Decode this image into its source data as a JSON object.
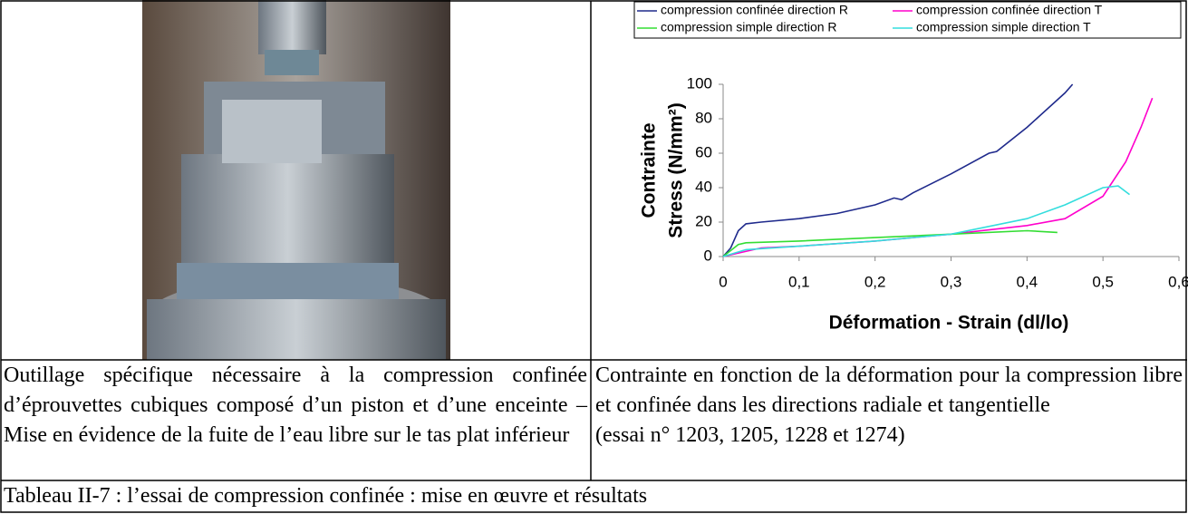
{
  "table": {
    "rows": [
      [
        "Outillage spécifique nécessaire à la compression confinée d’éprouvettes cubiques composé d’un piston et d’une enceinte – Mise en évidence de la fuite de l’eau libre sur le tas plat inférieur",
        [
          "Contrainte en fonction de la déformation pour la compression libre et confinée dans les directions radiale et tangentielle",
          "(essai n° 1203, 1205, 1228 et 1274)"
        ]
      ],
      [
        "Tableau II-7 : l’essai de compression confinée : mise en œuvre et résultats"
      ]
    ]
  },
  "chart_data": {
    "type": "line",
    "x_label": "Déformation - Strain (dl/lo)",
    "y_label": [
      "Contrainte",
      "Stress (N/mm²)"
    ],
    "xlim": [
      0,
      0.6
    ],
    "xticks": [
      0,
      {
        "value": 0.1,
        "label": "0,1"
      },
      {
        "value": 0.2,
        "label": "0,2"
      },
      {
        "value": 0.3,
        "label": "0,3"
      },
      {
        "value": 0.4,
        "label": "0,4"
      },
      {
        "value": 0.5,
        "label": "0,5"
      },
      {
        "value": 0.6,
        "label": "0,6"
      }
    ],
    "ylim": [
      0,
      100
    ],
    "yticks": [
      0,
      20,
      40,
      60,
      80,
      100
    ],
    "grid": false,
    "legend": "top",
    "series": [
      {
        "name": "compression confinée direction R",
        "color": "#1f2a8c",
        "x": [
          0,
          0.01,
          0.02,
          0.03,
          0.05,
          0.1,
          0.15,
          0.2,
          0.225,
          0.235,
          0.25,
          0.3,
          0.35,
          0.36,
          0.4,
          0.45,
          0.46
        ],
        "values": [
          0,
          5,
          15,
          19,
          20,
          22,
          25,
          30,
          34,
          33,
          37,
          48,
          60,
          61,
          75,
          95,
          100
        ]
      },
      {
        "name": "compression confinée direction T",
        "color": "#ff00cc",
        "x": [
          0,
          0.05,
          0.1,
          0.2,
          0.3,
          0.4,
          0.45,
          0.5,
          0.53,
          0.55,
          0.565
        ],
        "values": [
          0,
          5,
          6,
          9,
          13,
          18,
          22,
          35,
          55,
          75,
          92
        ]
      },
      {
        "name": "compression simple direction R",
        "color": "#33dd33",
        "x": [
          0,
          0.02,
          0.03,
          0.1,
          0.2,
          0.3,
          0.4,
          0.44
        ],
        "values": [
          0,
          7,
          8,
          9,
          11,
          13,
          15,
          14
        ]
      },
      {
        "name": "compression simple direction T",
        "color": "#33dddd",
        "x": [
          0,
          0.03,
          0.1,
          0.2,
          0.3,
          0.4,
          0.45,
          0.5,
          0.52,
          0.535
        ],
        "values": [
          0,
          4,
          6,
          9,
          13,
          22,
          30,
          40,
          41,
          36
        ]
      }
    ]
  }
}
